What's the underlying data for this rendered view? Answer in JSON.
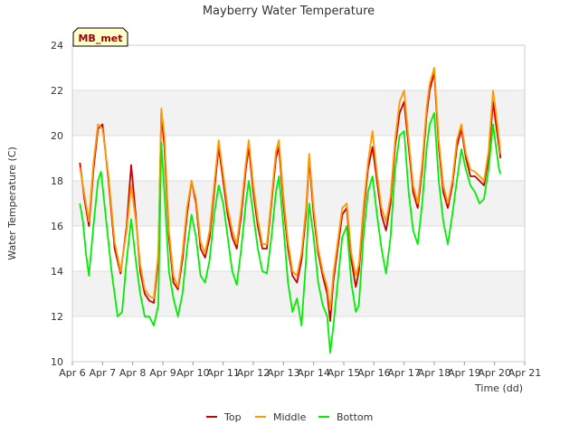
{
  "chart_data": {
    "type": "line",
    "title": "Mayberry Water Temperature",
    "xlabel": "Time (dd)",
    "ylabel": "Water Temperature (C)",
    "site_label": "MB_met",
    "xlim": [
      6,
      21
    ],
    "ylim": [
      10,
      24
    ],
    "x_ticks": [
      6,
      7,
      8,
      9,
      10,
      11,
      12,
      13,
      14,
      15,
      16,
      17,
      18,
      19,
      20,
      21
    ],
    "x_tick_labels": [
      "Apr 6",
      "Apr 7",
      "Apr 8",
      "Apr 9",
      "Apr 10",
      "Apr 11",
      "Apr 12",
      "Apr 13",
      "Apr 14",
      "Apr 15",
      "Apr 16",
      "Apr 17",
      "Apr 18",
      "Apr 19",
      "Apr 20",
      "Apr 21"
    ],
    "y_ticks": [
      10,
      12,
      14,
      16,
      18,
      20,
      22,
      24
    ],
    "y_tick_labels": [
      "10",
      "12",
      "14",
      "16",
      "18",
      "20",
      "22",
      "24"
    ],
    "grid": "horizontal bands",
    "legend_position": "bottom-center",
    "series": [
      {
        "name": "Top",
        "color": "#cc0000",
        "points": [
          [
            6.25,
            18.8
          ],
          [
            6.4,
            17.2
          ],
          [
            6.55,
            16.0
          ],
          [
            6.7,
            18.5
          ],
          [
            6.85,
            20.3
          ],
          [
            7.0,
            20.5
          ],
          [
            7.2,
            18.0
          ],
          [
            7.4,
            15.0
          ],
          [
            7.6,
            13.9
          ],
          [
            7.8,
            16.0
          ],
          [
            7.95,
            18.7
          ],
          [
            8.1,
            16.5
          ],
          [
            8.25,
            14.0
          ],
          [
            8.4,
            13.0
          ],
          [
            8.55,
            12.7
          ],
          [
            8.7,
            12.6
          ],
          [
            8.85,
            14.5
          ],
          [
            8.95,
            21.0
          ],
          [
            9.05,
            19.5
          ],
          [
            9.2,
            15.5
          ],
          [
            9.35,
            13.5
          ],
          [
            9.5,
            13.2
          ],
          [
            9.65,
            14.5
          ],
          [
            9.8,
            16.5
          ],
          [
            9.95,
            18.0
          ],
          [
            10.1,
            17.0
          ],
          [
            10.25,
            15.0
          ],
          [
            10.4,
            14.6
          ],
          [
            10.55,
            15.5
          ],
          [
            10.7,
            17.5
          ],
          [
            10.85,
            19.5
          ],
          [
            11.0,
            18.0
          ],
          [
            11.15,
            16.5
          ],
          [
            11.3,
            15.5
          ],
          [
            11.45,
            15.0
          ],
          [
            11.6,
            16.5
          ],
          [
            11.75,
            18.5
          ],
          [
            11.85,
            19.5
          ],
          [
            12.0,
            17.5
          ],
          [
            12.15,
            16.0
          ],
          [
            12.3,
            15.0
          ],
          [
            12.45,
            15.0
          ],
          [
            12.6,
            17.0
          ],
          [
            12.75,
            19.0
          ],
          [
            12.85,
            19.5
          ],
          [
            13.0,
            17.0
          ],
          [
            13.15,
            15.0
          ],
          [
            13.3,
            13.8
          ],
          [
            13.45,
            13.5
          ],
          [
            13.6,
            14.5
          ],
          [
            13.75,
            16.5
          ],
          [
            13.85,
            19.0
          ],
          [
            14.0,
            16.5
          ],
          [
            14.15,
            14.8
          ],
          [
            14.3,
            13.8
          ],
          [
            14.45,
            13.0
          ],
          [
            14.55,
            11.8
          ],
          [
            14.65,
            13.5
          ],
          [
            14.8,
            15.0
          ],
          [
            14.95,
            16.5
          ],
          [
            15.1,
            16.8
          ],
          [
            15.25,
            14.5
          ],
          [
            15.4,
            13.3
          ],
          [
            15.5,
            14.0
          ],
          [
            15.65,
            16.5
          ],
          [
            15.8,
            18.5
          ],
          [
            15.95,
            19.5
          ],
          [
            16.1,
            18.0
          ],
          [
            16.25,
            16.5
          ],
          [
            16.4,
            15.8
          ],
          [
            16.55,
            17.0
          ],
          [
            16.7,
            19.5
          ],
          [
            16.85,
            21.0
          ],
          [
            17.0,
            21.5
          ],
          [
            17.15,
            19.5
          ],
          [
            17.3,
            17.5
          ],
          [
            17.45,
            16.8
          ],
          [
            17.6,
            18.5
          ],
          [
            17.75,
            21.0
          ],
          [
            17.85,
            22.0
          ],
          [
            18.0,
            22.8
          ],
          [
            18.15,
            19.5
          ],
          [
            18.3,
            17.5
          ],
          [
            18.45,
            16.8
          ],
          [
            18.6,
            17.8
          ],
          [
            18.75,
            19.5
          ],
          [
            18.9,
            20.3
          ],
          [
            19.05,
            19.0
          ],
          [
            19.2,
            18.2
          ],
          [
            19.35,
            18.2
          ],
          [
            19.5,
            18.0
          ],
          [
            19.65,
            17.8
          ],
          [
            19.8,
            19.0
          ],
          [
            19.95,
            21.5
          ],
          [
            20.05,
            20.5
          ],
          [
            20.15,
            19.5
          ],
          [
            20.2,
            19.0
          ]
        ]
      },
      {
        "name": "Middle",
        "color": "#ff9900",
        "points": [
          [
            6.25,
            18.6
          ],
          [
            6.4,
            17.4
          ],
          [
            6.55,
            16.2
          ],
          [
            6.7,
            18.8
          ],
          [
            6.85,
            20.5
          ],
          [
            7.0,
            20.3
          ],
          [
            7.2,
            18.2
          ],
          [
            7.4,
            15.3
          ],
          [
            7.6,
            14.0
          ],
          [
            7.8,
            15.8
          ],
          [
            7.95,
            17.8
          ],
          [
            8.1,
            16.3
          ],
          [
            8.25,
            14.3
          ],
          [
            8.4,
            13.2
          ],
          [
            8.55,
            12.9
          ],
          [
            8.7,
            12.8
          ],
          [
            8.85,
            14.8
          ],
          [
            8.95,
            21.2
          ],
          [
            9.05,
            20.0
          ],
          [
            9.2,
            15.8
          ],
          [
            9.35,
            13.8
          ],
          [
            9.5,
            13.3
          ],
          [
            9.65,
            14.8
          ],
          [
            9.8,
            16.8
          ],
          [
            9.95,
            18.0
          ],
          [
            10.1,
            17.2
          ],
          [
            10.25,
            15.3
          ],
          [
            10.4,
            14.8
          ],
          [
            10.55,
            15.8
          ],
          [
            10.7,
            17.8
          ],
          [
            10.85,
            19.8
          ],
          [
            11.0,
            18.3
          ],
          [
            11.15,
            16.8
          ],
          [
            11.3,
            15.8
          ],
          [
            11.45,
            15.2
          ],
          [
            11.6,
            16.8
          ],
          [
            11.75,
            18.8
          ],
          [
            11.85,
            19.8
          ],
          [
            12.0,
            17.8
          ],
          [
            12.15,
            16.3
          ],
          [
            12.3,
            15.2
          ],
          [
            12.45,
            15.2
          ],
          [
            12.6,
            17.2
          ],
          [
            12.75,
            19.3
          ],
          [
            12.85,
            19.8
          ],
          [
            13.0,
            17.3
          ],
          [
            13.15,
            15.3
          ],
          [
            13.3,
            14.0
          ],
          [
            13.45,
            13.8
          ],
          [
            13.6,
            14.8
          ],
          [
            13.75,
            16.8
          ],
          [
            13.85,
            19.2
          ],
          [
            14.0,
            16.8
          ],
          [
            14.15,
            15.0
          ],
          [
            14.3,
            14.0
          ],
          [
            14.45,
            13.3
          ],
          [
            14.55,
            12.3
          ],
          [
            14.65,
            13.8
          ],
          [
            14.8,
            15.3
          ],
          [
            14.95,
            16.8
          ],
          [
            15.1,
            17.0
          ],
          [
            15.25,
            14.8
          ],
          [
            15.4,
            13.8
          ],
          [
            15.5,
            14.3
          ],
          [
            15.65,
            16.8
          ],
          [
            15.8,
            18.8
          ],
          [
            15.95,
            20.2
          ],
          [
            16.1,
            18.3
          ],
          [
            16.25,
            16.8
          ],
          [
            16.4,
            16.2
          ],
          [
            16.55,
            17.3
          ],
          [
            16.7,
            19.8
          ],
          [
            16.85,
            21.5
          ],
          [
            17.0,
            22.0
          ],
          [
            17.15,
            19.8
          ],
          [
            17.3,
            17.8
          ],
          [
            17.45,
            17.0
          ],
          [
            17.6,
            18.8
          ],
          [
            17.75,
            21.3
          ],
          [
            17.85,
            22.3
          ],
          [
            18.0,
            23.0
          ],
          [
            18.15,
            19.8
          ],
          [
            18.3,
            17.8
          ],
          [
            18.45,
            17.0
          ],
          [
            18.6,
            18.0
          ],
          [
            18.75,
            19.8
          ],
          [
            18.9,
            20.5
          ],
          [
            19.05,
            19.2
          ],
          [
            19.2,
            18.5
          ],
          [
            19.35,
            18.4
          ],
          [
            19.5,
            18.2
          ],
          [
            19.65,
            18.0
          ],
          [
            19.8,
            19.3
          ],
          [
            19.95,
            22.0
          ],
          [
            20.05,
            21.0
          ],
          [
            20.15,
            19.8
          ],
          [
            20.2,
            19.2
          ]
        ]
      },
      {
        "name": "Bottom",
        "color": "#00ee00",
        "points": [
          [
            6.25,
            17.0
          ],
          [
            6.35,
            16.2
          ],
          [
            6.45,
            14.8
          ],
          [
            6.55,
            13.8
          ],
          [
            6.7,
            16.0
          ],
          [
            6.85,
            18.0
          ],
          [
            6.95,
            18.4
          ],
          [
            7.1,
            16.5
          ],
          [
            7.3,
            14.0
          ],
          [
            7.5,
            12.0
          ],
          [
            7.65,
            12.2
          ],
          [
            7.8,
            14.5
          ],
          [
            7.95,
            16.3
          ],
          [
            8.1,
            14.5
          ],
          [
            8.25,
            13.0
          ],
          [
            8.4,
            12.0
          ],
          [
            8.55,
            12.0
          ],
          [
            8.7,
            11.6
          ],
          [
            8.85,
            12.5
          ],
          [
            8.95,
            19.7
          ],
          [
            9.05,
            17.5
          ],
          [
            9.2,
            14.0
          ],
          [
            9.35,
            12.8
          ],
          [
            9.5,
            12.0
          ],
          [
            9.65,
            13.0
          ],
          [
            9.8,
            15.0
          ],
          [
            9.95,
            16.5
          ],
          [
            10.1,
            15.5
          ],
          [
            10.25,
            13.8
          ],
          [
            10.4,
            13.5
          ],
          [
            10.55,
            14.5
          ],
          [
            10.7,
            16.5
          ],
          [
            10.85,
            17.8
          ],
          [
            11.0,
            17.0
          ],
          [
            11.15,
            15.5
          ],
          [
            11.3,
            14.0
          ],
          [
            11.45,
            13.4
          ],
          [
            11.6,
            15.0
          ],
          [
            11.75,
            17.0
          ],
          [
            11.85,
            18.0
          ],
          [
            12.0,
            16.5
          ],
          [
            12.15,
            15.0
          ],
          [
            12.3,
            14.0
          ],
          [
            12.45,
            13.9
          ],
          [
            12.6,
            15.5
          ],
          [
            12.75,
            17.5
          ],
          [
            12.85,
            18.2
          ],
          [
            13.0,
            16.0
          ],
          [
            13.15,
            13.5
          ],
          [
            13.3,
            12.2
          ],
          [
            13.45,
            12.8
          ],
          [
            13.6,
            11.6
          ],
          [
            13.75,
            14.5
          ],
          [
            13.85,
            17.0
          ],
          [
            14.0,
            15.5
          ],
          [
            14.15,
            13.5
          ],
          [
            14.3,
            12.5
          ],
          [
            14.45,
            12.0
          ],
          [
            14.55,
            10.4
          ],
          [
            14.65,
            11.5
          ],
          [
            14.8,
            13.5
          ],
          [
            14.95,
            15.5
          ],
          [
            15.1,
            16.0
          ],
          [
            15.25,
            13.5
          ],
          [
            15.4,
            12.2
          ],
          [
            15.5,
            12.5
          ],
          [
            15.65,
            15.5
          ],
          [
            15.8,
            17.5
          ],
          [
            15.95,
            18.2
          ],
          [
            16.1,
            16.5
          ],
          [
            16.25,
            15.0
          ],
          [
            16.4,
            13.9
          ],
          [
            16.55,
            15.5
          ],
          [
            16.7,
            18.5
          ],
          [
            16.85,
            20.0
          ],
          [
            17.0,
            20.2
          ],
          [
            17.15,
            17.5
          ],
          [
            17.3,
            15.8
          ],
          [
            17.45,
            15.2
          ],
          [
            17.6,
            17.0
          ],
          [
            17.75,
            19.5
          ],
          [
            17.85,
            20.5
          ],
          [
            18.0,
            21.0
          ],
          [
            18.15,
            18.0
          ],
          [
            18.3,
            16.2
          ],
          [
            18.45,
            15.2
          ],
          [
            18.6,
            16.5
          ],
          [
            18.75,
            18.0
          ],
          [
            18.9,
            19.4
          ],
          [
            19.05,
            18.5
          ],
          [
            19.2,
            17.8
          ],
          [
            19.35,
            17.5
          ],
          [
            19.5,
            17.0
          ],
          [
            19.65,
            17.2
          ],
          [
            19.8,
            18.5
          ],
          [
            19.95,
            20.5
          ],
          [
            20.05,
            19.5
          ],
          [
            20.15,
            18.5
          ],
          [
            20.2,
            18.3
          ]
        ]
      }
    ]
  }
}
